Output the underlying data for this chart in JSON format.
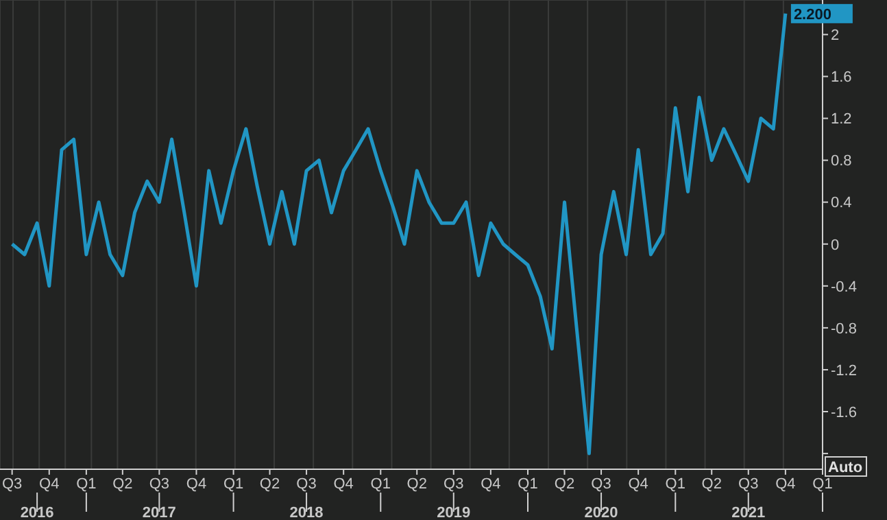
{
  "chart_data": {
    "type": "line",
    "x": [
      "2016-07",
      "2016-08",
      "2016-09",
      "2016-10",
      "2016-11",
      "2016-12",
      "2017-01",
      "2017-02",
      "2017-03",
      "2017-04",
      "2017-05",
      "2017-06",
      "2017-07",
      "2017-08",
      "2017-09",
      "2017-10",
      "2017-11",
      "2017-12",
      "2018-01",
      "2018-02",
      "2018-03",
      "2018-04",
      "2018-05",
      "2018-06",
      "2018-07",
      "2018-08",
      "2018-09",
      "2018-10",
      "2018-11",
      "2018-12",
      "2019-01",
      "2019-02",
      "2019-03",
      "2019-04",
      "2019-05",
      "2019-06",
      "2019-07",
      "2019-08",
      "2019-09",
      "2019-10",
      "2019-11",
      "2019-12",
      "2020-01",
      "2020-02",
      "2020-03",
      "2020-04",
      "2020-05",
      "2020-06",
      "2020-07",
      "2020-08",
      "2020-09",
      "2020-10",
      "2020-11",
      "2020-12",
      "2021-01",
      "2021-02",
      "2021-03",
      "2021-04",
      "2021-05",
      "2021-06",
      "2021-07",
      "2021-08",
      "2021-09",
      "2021-10"
    ],
    "series": [
      {
        "color": "#2196c4",
        "values": [
          0.0,
          -0.1,
          0.2,
          -0.4,
          0.9,
          1.0,
          -0.1,
          0.4,
          -0.1,
          -0.3,
          0.3,
          0.6,
          0.4,
          1.0,
          0.3,
          -0.4,
          0.7,
          0.2,
          0.7,
          1.1,
          0.55,
          0.0,
          0.5,
          0.0,
          0.7,
          0.8,
          0.3,
          0.7,
          0.9,
          1.1,
          0.7,
          0.35,
          0.0,
          0.7,
          0.4,
          0.2,
          0.2,
          0.4,
          -0.3,
          0.2,
          0.0,
          -0.1,
          -0.2,
          -0.5,
          -1.0,
          0.4,
          -0.8,
          -2.0,
          -0.1,
          0.5,
          -0.1,
          0.9,
          -0.1,
          0.1,
          1.3,
          0.5,
          1.4,
          0.8,
          1.1,
          0.85,
          0.6,
          1.2,
          1.1,
          2.2
        ],
        "value_labels": [
          null,
          null,
          null,
          null,
          null,
          null,
          null,
          null,
          null,
          null,
          null,
          null,
          null,
          null,
          null,
          null,
          null,
          null,
          null,
          null,
          null,
          null,
          null,
          null,
          null,
          null,
          null,
          null,
          null,
          null,
          null,
          null,
          null,
          null,
          null,
          null,
          null,
          null,
          null,
          null,
          null,
          null,
          null,
          null,
          null,
          null,
          null,
          null,
          null,
          null,
          null,
          null,
          null,
          null,
          null,
          null,
          null,
          null,
          null,
          null,
          null,
          null,
          null,
          "2.200"
        ]
      }
    ],
    "xlim": [
      "2016-06-01",
      "2022-01-01"
    ],
    "xticks": [
      {
        "value": "2016-07",
        "label": "Q3"
      },
      {
        "value": "2016-10",
        "label": "Q4"
      },
      {
        "value": "2017-01",
        "label": "Q1"
      },
      {
        "value": "2017-04",
        "label": "Q2"
      },
      {
        "value": "2017-07",
        "label": "Q3"
      },
      {
        "value": "2017-10",
        "label": "Q4"
      },
      {
        "value": "2018-01",
        "label": "Q1"
      },
      {
        "value": "2018-04",
        "label": "Q2"
      },
      {
        "value": "2018-07",
        "label": "Q3"
      },
      {
        "value": "2018-10",
        "label": "Q4"
      },
      {
        "value": "2019-01",
        "label": "Q1"
      },
      {
        "value": "2019-04",
        "label": "Q2"
      },
      {
        "value": "2019-07",
        "label": "Q3"
      },
      {
        "value": "2019-10",
        "label": "Q4"
      },
      {
        "value": "2020-01",
        "label": "Q1"
      },
      {
        "value": "2020-04",
        "label": "Q2"
      },
      {
        "value": "2020-07",
        "label": "Q3"
      },
      {
        "value": "2020-10",
        "label": "Q4"
      },
      {
        "value": "2021-01",
        "label": "Q1"
      },
      {
        "value": "2021-04",
        "label": "Q2"
      },
      {
        "value": "2021-07",
        "label": "Q3"
      },
      {
        "value": "2021-10",
        "label": "Q4"
      },
      {
        "value": "2022-01",
        "label": "Q1"
      }
    ],
    "x2lim": [
      "2016-06-01",
      "2022-01-01"
    ],
    "x2ticks": [
      {
        "value": "2016-09",
        "label": "2016"
      },
      {
        "value": "2017-01",
        "label": null
      },
      {
        "value": "2017-07",
        "label": "2017"
      },
      {
        "value": "2018-01",
        "label": null
      },
      {
        "value": "2018-07",
        "label": "2018"
      },
      {
        "value": "2019-01",
        "label": null
      },
      {
        "value": "2019-07",
        "label": "2019"
      },
      {
        "value": "2020-01",
        "label": null
      },
      {
        "value": "2020-07",
        "label": "2020"
      },
      {
        "value": "2021-01",
        "label": null
      },
      {
        "value": "2021-07",
        "label": "2021"
      },
      {
        "value": "2022-01",
        "label": null
      }
    ],
    "ylim": [
      -2.15,
      2.33
    ],
    "yticks": [
      {
        "value": -2,
        "label": null
      },
      -1.6,
      -1.2,
      -0.8,
      -0.4,
      0,
      0.4,
      0.8,
      1.2,
      1.6,
      2
    ],
    "grid": true,
    "marker": "none",
    "line_style": "solid",
    "annotations": [
      "Auto"
    ]
  }
}
